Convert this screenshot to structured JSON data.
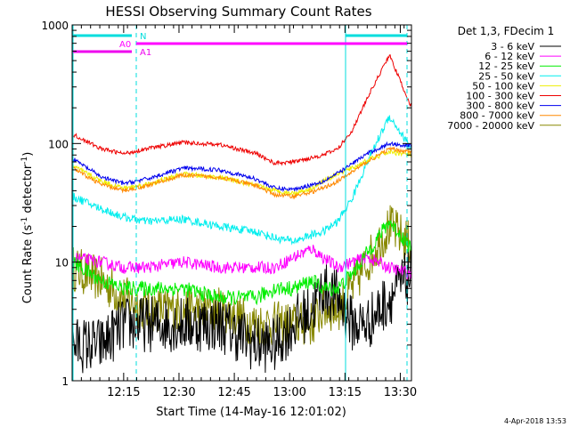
{
  "chart_data": {
    "type": "line",
    "title": "HESSI Observing Summary Count Rates",
    "xlabel": "Start Time (14-May-16 12:01:02)",
    "ylabel_main": "Count Rate (s",
    "ylabel_sup1": "-1",
    "ylabel_mid": " detector",
    "ylabel_sup2": "-1",
    "ylabel_end": ")",
    "y_scale": "log",
    "ylim": [
      1,
      1000
    ],
    "xlim_minutes": [
      0,
      38.5
    ],
    "x_ticks": [
      {
        "label": "12:15",
        "minute": 13.97
      },
      {
        "label": "12:30",
        "minute": 28.97
      },
      {
        "label": "12:45",
        "minute": 43.97
      },
      {
        "label": "13:00",
        "minute": 58.97
      },
      {
        "label": "13:15",
        "minute": 73.97
      },
      {
        "label": "13:30",
        "minute": 88.97
      }
    ],
    "y_ticks": [
      {
        "label": "1",
        "value": 1
      },
      {
        "label": "10",
        "value": 10
      },
      {
        "label": "100",
        "value": 100
      },
      {
        "label": "1000",
        "value": 1000
      }
    ],
    "legend_title": "Det 1,3, FDecim 1",
    "legend_placement": "right",
    "timestamp": "4-Apr-2018 13:53",
    "series": [
      {
        "name": "3 - 6 keV",
        "color": "#000000",
        "base": [
          2,
          2,
          3,
          3,
          3,
          3,
          2,
          2,
          3,
          4,
          6,
          5,
          3,
          3,
          5,
          8
        ],
        "knots": [
          0,
          8,
          14,
          20,
          30,
          40,
          50,
          55,
          60,
          65,
          68,
          72,
          76,
          80,
          86,
          92
        ],
        "noise": 0.55
      },
      {
        "name": "6 - 12 keV",
        "color": "#ff00ff",
        "base": [
          11,
          10,
          9,
          9,
          10,
          9,
          9,
          9,
          11,
          13,
          11,
          9,
          10,
          11,
          9,
          8
        ],
        "knots": [
          0,
          8,
          14,
          20,
          30,
          40,
          50,
          55,
          60,
          65,
          68,
          72,
          76,
          80,
          86,
          92
        ],
        "noise": 0.12
      },
      {
        "name": "12 - 25 keV",
        "color": "#00ee00",
        "base": [
          10,
          7,
          6,
          6,
          6,
          5,
          5,
          6,
          6,
          7,
          6,
          6,
          8,
          12,
          22,
          13
        ],
        "knots": [
          0,
          8,
          14,
          20,
          30,
          40,
          50,
          55,
          60,
          65,
          68,
          72,
          76,
          80,
          86,
          92
        ],
        "noise": 0.15
      },
      {
        "name": "25 - 50 keV",
        "color": "#00eeee",
        "base": [
          36,
          28,
          24,
          22,
          23,
          20,
          18,
          16,
          15,
          17,
          18,
          22,
          35,
          70,
          170,
          90
        ],
        "knots": [
          0,
          8,
          14,
          20,
          30,
          40,
          50,
          55,
          60,
          65,
          68,
          72,
          76,
          80,
          86,
          92
        ],
        "noise": 0.08
      },
      {
        "name": "50 - 100 keV",
        "color": "#eeee00",
        "base": [
          65,
          48,
          42,
          45,
          55,
          52,
          44,
          40,
          38,
          42,
          48,
          56,
          62,
          72,
          85,
          80
        ],
        "knots": [
          0,
          8,
          14,
          20,
          30,
          40,
          50,
          55,
          60,
          65,
          68,
          72,
          76,
          80,
          86,
          92
        ],
        "noise": 0.05
      },
      {
        "name": "100 - 300 keV",
        "color": "#ee0000",
        "base": [
          120,
          90,
          82,
          90,
          102,
          98,
          82,
          68,
          70,
          76,
          80,
          90,
          130,
          240,
          560,
          200
        ],
        "knots": [
          0,
          8,
          14,
          20,
          30,
          40,
          50,
          55,
          60,
          65,
          68,
          72,
          76,
          80,
          86,
          92
        ],
        "noise": 0.04
      },
      {
        "name": "300 - 800 keV",
        "color": "#0000ee",
        "base": [
          75,
          52,
          46,
          50,
          62,
          60,
          50,
          42,
          41,
          45,
          48,
          56,
          68,
          82,
          100,
          95
        ],
        "knots": [
          0,
          8,
          14,
          20,
          30,
          40,
          50,
          55,
          60,
          65,
          68,
          72,
          76,
          80,
          86,
          92
        ],
        "noise": 0.04
      },
      {
        "name": "800 - 7000 keV",
        "color": "#ff8800",
        "base": [
          62,
          45,
          40,
          44,
          54,
          52,
          44,
          37,
          36,
          39,
          42,
          48,
          58,
          70,
          90,
          85
        ],
        "knots": [
          0,
          8,
          14,
          20,
          30,
          40,
          50,
          55,
          60,
          65,
          68,
          72,
          76,
          80,
          86,
          92
        ],
        "noise": 0.04
      },
      {
        "name": "7000 - 20000 keV",
        "color": "#888800",
        "base": [
          9,
          7,
          5,
          4,
          4,
          4,
          3,
          3,
          3,
          3,
          4,
          4,
          6,
          10,
          20,
          14
        ],
        "knots": [
          0,
          8,
          14,
          20,
          30,
          40,
          50,
          55,
          60,
          65,
          68,
          72,
          76,
          80,
          86,
          92
        ],
        "noise": 0.45
      }
    ],
    "flags": [
      {
        "name": "N",
        "color": "#00dddd"
      },
      {
        "name": "A0",
        "color": "#ff00ff"
      },
      {
        "name": "A1",
        "color": "#ee00ee"
      }
    ]
  }
}
